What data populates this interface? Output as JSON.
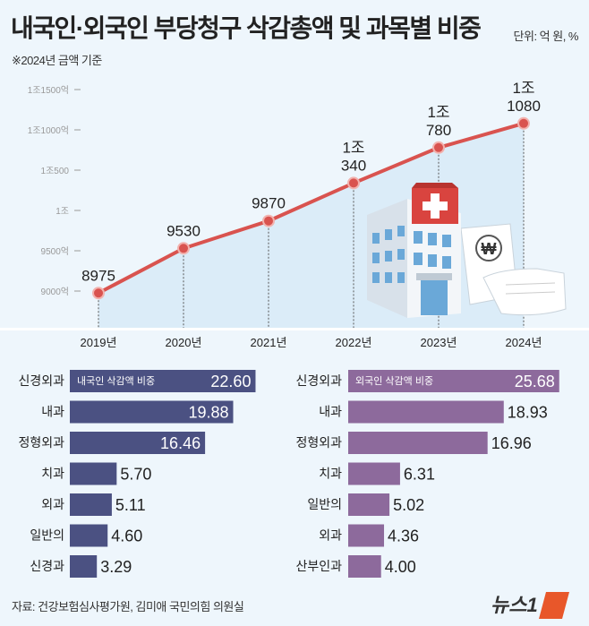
{
  "header": {
    "title": "내국인·외국인 부당청구 삭감총액 및 과목별 비중",
    "unit": "단위: 억 원, %",
    "note": "※2024년 금액 기준"
  },
  "footer": {
    "source": "자료: 건강보험심사평가원, 김미애 국민의힘 의원실",
    "logo_text": "뉴스1"
  },
  "chart_data": [
    {
      "type": "line",
      "categories": [
        "2019년",
        "2020년",
        "2021년",
        "2022년",
        "2023년",
        "2024년"
      ],
      "values": [
        8975,
        9530,
        9870,
        10340,
        10780,
        11080
      ],
      "data_labels": [
        [
          "8975"
        ],
        [
          "9530"
        ],
        [
          "9870"
        ],
        [
          "1조",
          "340"
        ],
        [
          "1조",
          "780"
        ],
        [
          "1조",
          "1080"
        ]
      ],
      "yticks": [
        {
          "value": 9000,
          "label": "9000억"
        },
        {
          "value": 9500,
          "label": "9500억"
        },
        {
          "value": 10000,
          "label": "1조"
        },
        {
          "value": 10500,
          "label": "1조500"
        },
        {
          "value": 11000,
          "label": "1조1000억"
        },
        {
          "value": 11500,
          "label": "1조1500억"
        }
      ],
      "ylim": [
        9000,
        11500
      ],
      "color": "#d9534f"
    },
    {
      "type": "bar",
      "orientation": "horizontal",
      "series_label": "내국인 삭감액 비중",
      "categories": [
        "신경외과",
        "내과",
        "정형외과",
        "치과",
        "외과",
        "일반의",
        "신경과"
      ],
      "values": [
        22.6,
        19.88,
        16.46,
        5.7,
        5.11,
        4.6,
        3.29
      ],
      "value_labels": [
        "22.60",
        "19.88",
        "16.46",
        "5.70",
        "5.11",
        "4.60",
        "3.29"
      ],
      "label_inside": [
        true,
        true,
        true,
        false,
        false,
        false,
        false
      ],
      "color": "#4b5182"
    },
    {
      "type": "bar",
      "orientation": "horizontal",
      "series_label": "외국인 삭감액 비중",
      "categories": [
        "신경외과",
        "내과",
        "정형외과",
        "치과",
        "일반의",
        "외과",
        "산부인과"
      ],
      "values": [
        25.68,
        18.93,
        16.96,
        6.31,
        5.02,
        4.36,
        4.0
      ],
      "value_labels": [
        "25.68",
        "18.93",
        "16.96",
        "6.31",
        "5.02",
        "4.36",
        "4.00"
      ],
      "label_inside": [
        true,
        false,
        false,
        false,
        false,
        false,
        false
      ],
      "color": "#8d6a9c"
    }
  ]
}
